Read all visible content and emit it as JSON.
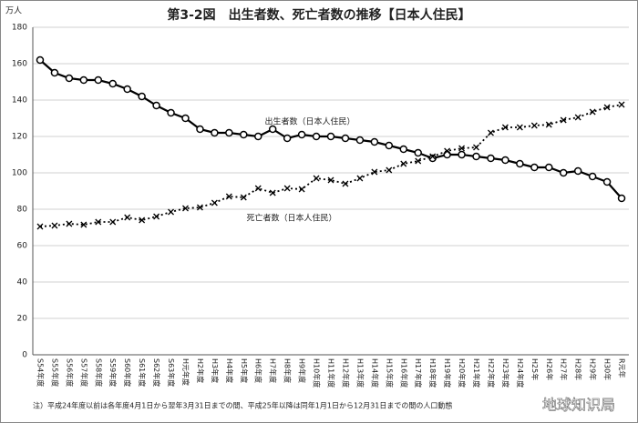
{
  "chart_data": {
    "type": "line",
    "title": "第3-2図　出生者数、死亡者数の推移【日本人住民】",
    "y_label": "万人",
    "categories": [
      "S54年度",
      "S55年度",
      "S56年度",
      "S57年度",
      "S58年度",
      "S59年度",
      "S60年度",
      "S61年度",
      "S62年度",
      "S63年度",
      "H元年度",
      "H2年度",
      "H3年度",
      "H4年度",
      "H5年度",
      "H6年度",
      "H7年度",
      "H8年度",
      "H9年度",
      "H10年度",
      "H11年度",
      "H12年度",
      "H13年度",
      "H14年度",
      "H15年度",
      "H16年度",
      "H17年度",
      "H18年度",
      "H19年度",
      "H20年度",
      "H21年度",
      "H22年度",
      "H23年度",
      "H24年度",
      "H25年",
      "H26年",
      "H27年",
      "H28年",
      "H29年",
      "H30年",
      "R元年"
    ],
    "series": [
      {
        "name": "出生者数（日本人住民）",
        "color": "#000000",
        "marker": "circle",
        "values": [
          162,
          155,
          152,
          151,
          151,
          149,
          146,
          142,
          137,
          133,
          130,
          124,
          122,
          122,
          121,
          120,
          124,
          119,
          121,
          120,
          120,
          119,
          118,
          117,
          115,
          113,
          111,
          108,
          110,
          110,
          109,
          108,
          107,
          105,
          103,
          103,
          100,
          101,
          98,
          95,
          86
        ]
      },
      {
        "name": "死亡者数（日本人住民）",
        "color": "#000000",
        "marker": "x",
        "values": [
          70.5,
          71,
          72,
          71.5,
          73,
          73,
          75.5,
          74,
          76,
          78.5,
          80.5,
          81,
          83.5,
          87,
          86.5,
          91.5,
          89,
          91.5,
          91,
          97,
          96,
          94,
          97,
          100.5,
          101.5,
          105,
          106.5,
          109,
          112,
          113.5,
          114,
          122,
          125,
          125,
          126,
          126.5,
          129,
          130.5,
          133.5,
          136,
          137.5
        ]
      }
    ],
    "ylim": [
      0,
      180
    ],
    "yticks": [
      0,
      20,
      40,
      60,
      80,
      100,
      120,
      140,
      160,
      180
    ],
    "grid": true,
    "note": "注）平成24年度以前は各年度4月1日から翌年3月31日までの間、平成25年以降は同年1月1日から12月31日までの間の人口動態",
    "watermark": "地球知识局"
  }
}
